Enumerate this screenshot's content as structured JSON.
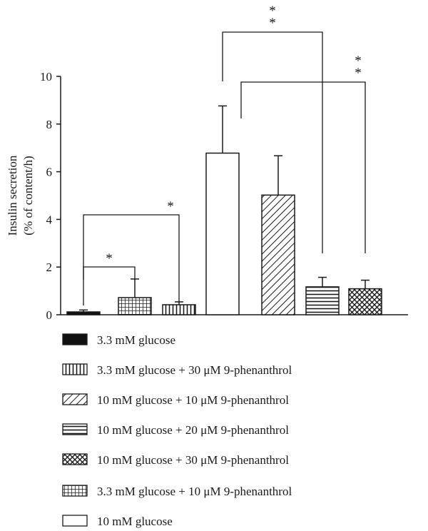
{
  "chart_data": {
    "type": "bar",
    "title": "",
    "ylabel_line1": "Insulin secretion",
    "ylabel_line2": "(% of content/h)",
    "ylim": [
      0,
      10
    ],
    "yticks": [
      "0",
      "2",
      "4",
      "6",
      "8",
      "10"
    ],
    "grid": false,
    "legend_position": "bottom",
    "bars": [
      {
        "series": "3.3 mM glucose",
        "pattern": "solid-black",
        "value": 0.12,
        "error": 0.08
      },
      {
        "series": "3.3 mM glucose + 10 μM 9-phenanthrol",
        "pattern": "grid",
        "value": 0.72,
        "error": 0.78
      },
      {
        "series": "3.3 mM glucose + 30 μM 9-phenanthrol",
        "pattern": "vertical-lines",
        "value": 0.42,
        "error": 0.12
      },
      {
        "series": "10 mM glucose",
        "pattern": "white",
        "value": 6.78,
        "error": 1.98
      },
      {
        "series": "10 mM glucose + 10 μM 9-phenanthrol",
        "pattern": "diagonal",
        "value": 5.02,
        "error": 1.65
      },
      {
        "series": "10 mM glucose + 20 μM 9-phenanthrol",
        "pattern": "horizontal-lines",
        "value": 1.17,
        "error": 0.4
      },
      {
        "series": "10 mM glucose + 30 μM 9-phenanthrol",
        "pattern": "crosshatch",
        "value": 1.09,
        "error": 0.36
      }
    ],
    "significance": [
      {
        "from": 0,
        "to": 1,
        "label": "*"
      },
      {
        "from": 0,
        "to": 2,
        "label": "*"
      },
      {
        "from": 3,
        "to": 5,
        "label": "**"
      },
      {
        "from": 3,
        "to": 6,
        "label": "**"
      }
    ],
    "legend": [
      {
        "pattern": "solid-black",
        "label": "3.3 mM glucose"
      },
      {
        "pattern": "vertical-lines",
        "label": "3.3 mM glucose + 30 μM 9-phenanthrol"
      },
      {
        "pattern": "diagonal",
        "label": "10 mM glucose + 10 μM 9-phenanthrol"
      },
      {
        "pattern": "horizontal-lines",
        "label": "10 mM glucose + 20 μM 9-phenanthrol"
      },
      {
        "pattern": "crosshatch",
        "label": "10 mM glucose + 30 μM 9-phenanthrol"
      },
      {
        "pattern": "grid",
        "label": "3.3 mM glucose + 10 μM 9-phenanthrol"
      },
      {
        "pattern": "white",
        "label": "10 mM glucose"
      }
    ]
  }
}
